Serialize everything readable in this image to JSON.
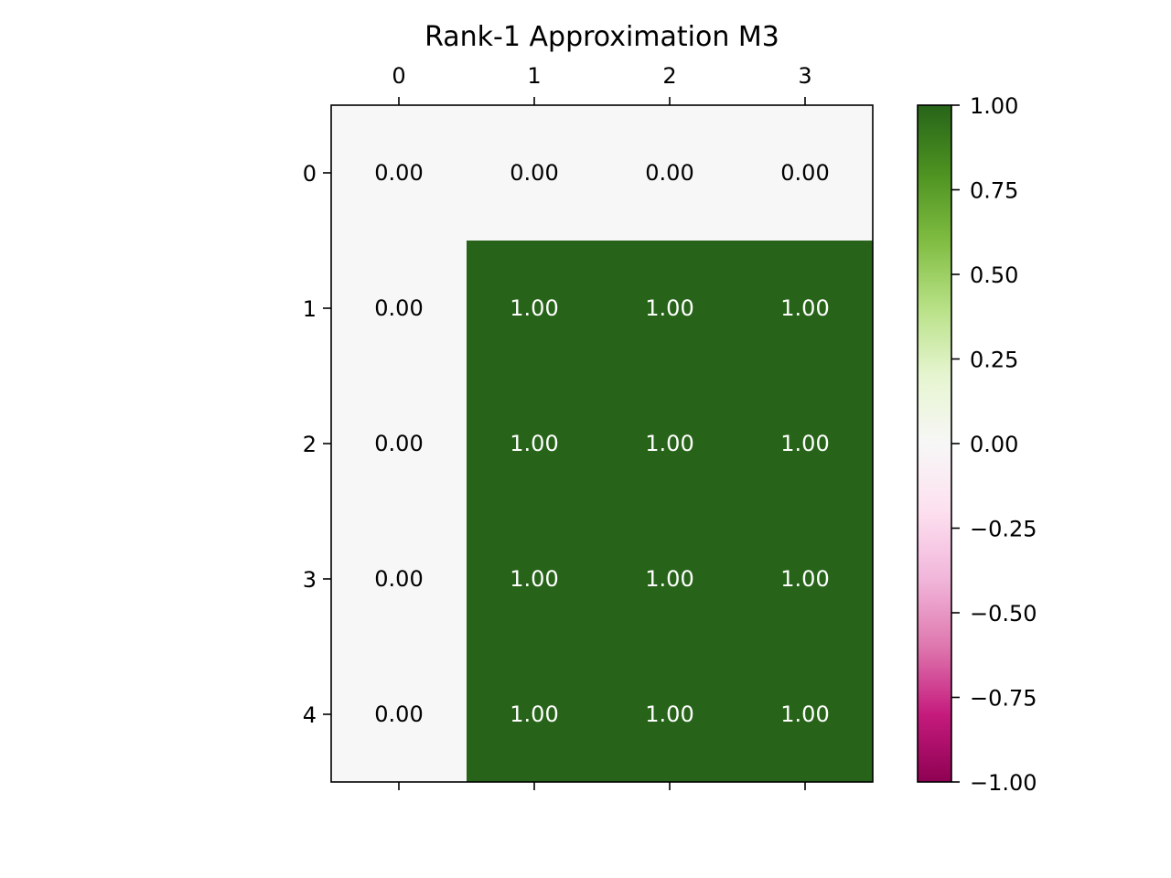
{
  "chart_data": {
    "type": "heatmap",
    "title": "Rank-1 Approximation M3",
    "xlabel": "",
    "ylabel": "",
    "x_ticks": [
      "0",
      "1",
      "2",
      "3"
    ],
    "y_ticks": [
      "0",
      "1",
      "2",
      "3",
      "4"
    ],
    "values": [
      [
        0,
        0,
        0,
        0
      ],
      [
        0,
        1,
        1,
        1
      ],
      [
        0,
        1,
        1,
        1
      ],
      [
        0,
        1,
        1,
        1
      ],
      [
        0,
        1,
        1,
        1
      ]
    ],
    "cell_labels": [
      [
        "0.00",
        "0.00",
        "0.00",
        "0.00"
      ],
      [
        "0.00",
        "1.00",
        "1.00",
        "1.00"
      ],
      [
        "0.00",
        "1.00",
        "1.00",
        "1.00"
      ],
      [
        "0.00",
        "1.00",
        "1.00",
        "1.00"
      ],
      [
        "0.00",
        "1.00",
        "1.00",
        "1.00"
      ]
    ],
    "colormap": "PiYG",
    "vmin": -1.0,
    "vmax": 1.0,
    "colorbar_ticks": [
      1.0,
      0.75,
      0.5,
      0.25,
      0.0,
      -0.25,
      -0.5,
      -0.75,
      -1.0
    ],
    "colorbar_tick_labels": [
      "1.00",
      "0.75",
      "0.50",
      "0.25",
      "0.00",
      "−0.25",
      "−0.50",
      "−0.75",
      "−1.00"
    ],
    "x_tick_position": "top",
    "grid": false,
    "colors": {
      "zero": "#f5f5f5",
      "positive_max": "#276419",
      "negative_max": "#8e0152",
      "label_light": "#ffffff",
      "label_dark": "#000000"
    }
  }
}
